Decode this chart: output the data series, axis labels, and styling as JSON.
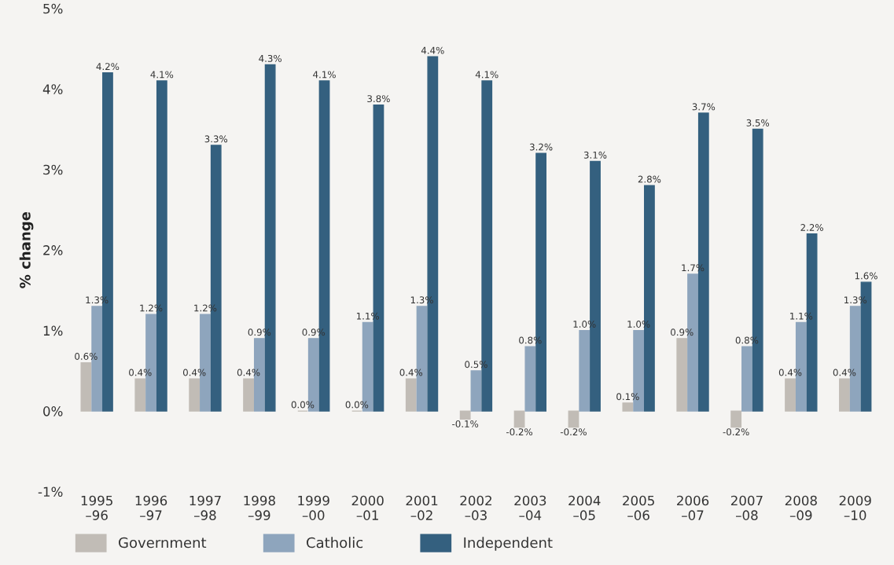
{
  "chart_data": {
    "type": "bar",
    "ylabel": "% change",
    "categories": [
      "1995\n–96",
      "1996\n–97",
      "1997\n–98",
      "1998\n–99",
      "1999\n–00",
      "2000\n–01",
      "2001\n–02",
      "2002\n–03",
      "2003\n–04",
      "2004\n–05",
      "2005\n–06",
      "2006\n–07",
      "2007\n–08",
      "2008\n–09",
      "2009\n–10"
    ],
    "series": [
      {
        "name": "Government",
        "color": "#c1bcb6",
        "values": [
          0.6,
          0.4,
          0.4,
          0.4,
          0.0,
          0.0,
          0.4,
          -0.1,
          -0.2,
          -0.2,
          0.1,
          0.9,
          -0.2,
          0.4,
          0.4
        ],
        "value_labels": [
          "0.6%",
          "0.4%",
          "0.4%",
          "0.4%",
          "0.0%",
          "0.0%",
          "0.4%",
          "-0.1%",
          "-0.2%",
          "-0.2%",
          "0.1%",
          "0.9%",
          "-0.2%",
          "0.4%",
          "0.4%"
        ]
      },
      {
        "name": "Catholic",
        "color": "#8ea5bd",
        "values": [
          1.3,
          1.2,
          1.2,
          0.9,
          0.9,
          1.1,
          1.3,
          0.5,
          0.8,
          1.0,
          1.0,
          1.7,
          0.8,
          1.1,
          1.3
        ],
        "value_labels": [
          "1.3%",
          "1.2%",
          "1.2%",
          "0.9%",
          "0.9%",
          "1.1%",
          "1.3%",
          "0.5%",
          "0.8%",
          "1.0%",
          "1.0%",
          "1.7%",
          "0.8%",
          "1.1%",
          "1.3%"
        ]
      },
      {
        "name": "Independent",
        "color": "#34607f",
        "values": [
          4.2,
          4.1,
          3.3,
          4.3,
          4.1,
          3.8,
          4.4,
          4.1,
          3.2,
          3.1,
          2.8,
          3.7,
          3.5,
          2.2,
          1.6
        ],
        "value_labels": [
          "4.2%",
          "4.1%",
          "3.3%",
          "4.3%",
          "4.1%",
          "3.8%",
          "4.4%",
          "4.1%",
          "3.2%",
          "3.1%",
          "2.8%",
          "3.7%",
          "3.5%",
          "2.2%",
          "1.6%"
        ]
      }
    ],
    "ylim": [
      -1,
      5
    ],
    "yticks": [
      {
        "value": -1,
        "label": "-1%"
      },
      {
        "value": 0,
        "label": "0%"
      },
      {
        "value": 1,
        "label": "1%"
      },
      {
        "value": 2,
        "label": "2%"
      },
      {
        "value": 3,
        "label": "3%"
      },
      {
        "value": 4,
        "label": "4%"
      },
      {
        "value": 5,
        "label": "5%"
      }
    ],
    "grid": false,
    "legend": "bottom left"
  }
}
